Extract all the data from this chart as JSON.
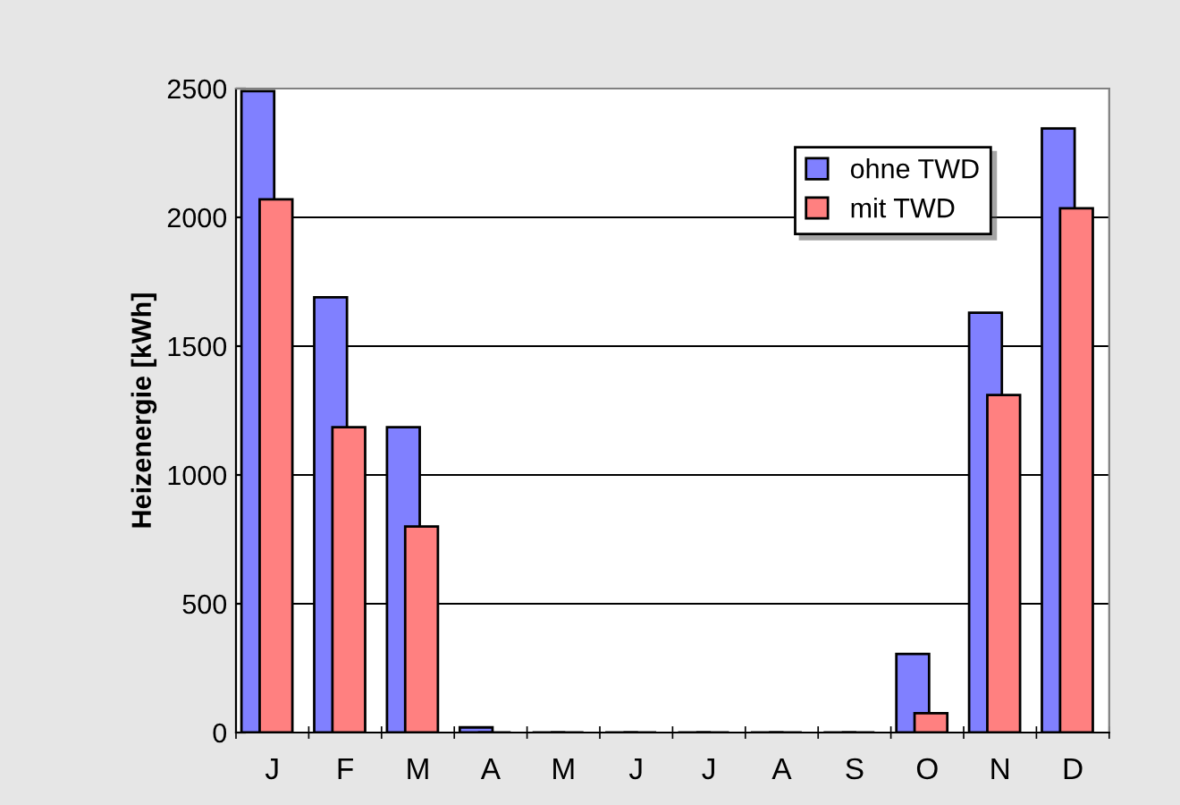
{
  "chart_data": {
    "type": "bar",
    "ylabel": "Heizenergie [kWh]",
    "categories": [
      "J",
      "F",
      "M",
      "A",
      "M",
      "J",
      "J",
      "A",
      "S",
      "O",
      "N",
      "D"
    ],
    "series": [
      {
        "name": "ohne TWD",
        "color": "#8080ff",
        "values": [
          2490,
          1690,
          1185,
          20,
          0,
          0,
          0,
          0,
          0,
          305,
          1630,
          2345
        ]
      },
      {
        "name": "mit TWD",
        "color": "#ff8080",
        "values": [
          2070,
          1185,
          800,
          0,
          0,
          0,
          0,
          0,
          0,
          75,
          1310,
          2035
        ]
      }
    ],
    "ylim": [
      0,
      2500
    ],
    "yticks": [
      0,
      500,
      1000,
      1500,
      2000,
      2500
    ],
    "grid": "y",
    "legend": "top right"
  }
}
